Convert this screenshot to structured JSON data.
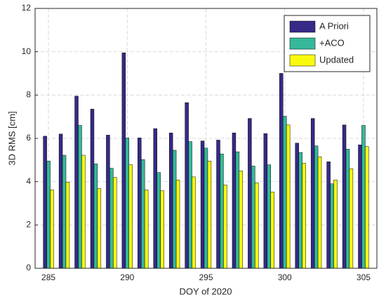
{
  "chart_data": {
    "type": "bar",
    "xlabel": "DOY of 2020",
    "ylabel": "3D RMS [cm]",
    "x": [
      285,
      286,
      287,
      288,
      289,
      290,
      291,
      292,
      293,
      294,
      295,
      296,
      297,
      298,
      299,
      300,
      301,
      302,
      303,
      304,
      305
    ],
    "series": [
      {
        "name": "A Priori",
        "color": "#352a87",
        "values": [
          6.1,
          6.2,
          7.95,
          7.35,
          6.15,
          9.95,
          6.02,
          6.45,
          6.25,
          7.65,
          5.88,
          5.92,
          6.25,
          6.92,
          6.22,
          9.0,
          5.78,
          6.92,
          4.92,
          6.62,
          5.7
        ]
      },
      {
        "name": "+ACO",
        "color": "#35b99a",
        "values": [
          4.95,
          5.22,
          6.6,
          4.82,
          4.62,
          6.02,
          5.02,
          4.42,
          5.45,
          5.85,
          5.55,
          5.28,
          5.38,
          4.72,
          4.78,
          7.02,
          5.35,
          5.65,
          3.9,
          5.5,
          6.6
        ]
      },
      {
        "name": "Updated",
        "color": "#f9fb0e",
        "values": [
          3.62,
          3.98,
          5.22,
          3.68,
          4.2,
          4.78,
          3.62,
          3.58,
          4.08,
          4.22,
          4.95,
          3.85,
          4.5,
          3.95,
          3.52,
          6.62,
          4.85,
          5.15,
          4.08,
          4.6,
          5.62
        ]
      }
    ],
    "xlim": [
      284.15,
      305.85
    ],
    "xticks": [
      285,
      290,
      295,
      300,
      305
    ],
    "ylim": [
      0,
      12
    ],
    "yticks": [
      0,
      2,
      4,
      6,
      8,
      10,
      12
    ],
    "grid": true,
    "legend": "upper right"
  }
}
